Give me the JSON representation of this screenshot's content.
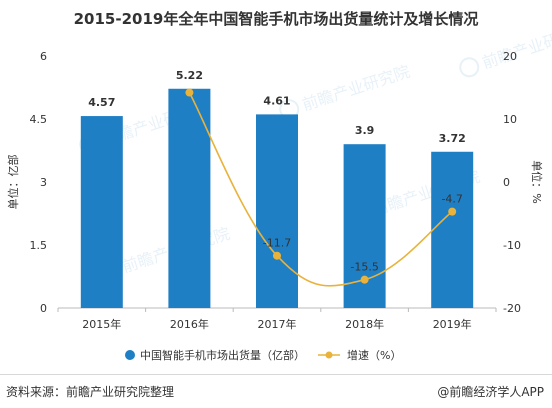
{
  "title": "2015-2019年全年中国智能手机市场出货量统计及增长情况",
  "source": "资料来源：前瞻产业研究院整理",
  "brand": "@前瞻经济学人APP",
  "watermark": {
    "main": "前瞻产业研究院",
    "sub": "前瞻产业研究院"
  },
  "colors": {
    "bar": "#1f7fc5",
    "line": "#e9b33b",
    "axis": "#bbbbbb"
  },
  "chart_data": {
    "type": "bar",
    "categories": [
      "2015年",
      "2016年",
      "2017年",
      "2018年",
      "2019年"
    ],
    "series": [
      {
        "name": "中国智能手机市场出货量（亿部）",
        "type": "bar",
        "axis": "left",
        "values": [
          4.57,
          5.22,
          4.61,
          3.9,
          3.72
        ],
        "labels": [
          "4.57",
          "5.22",
          "4.61",
          "3.9",
          "3.72"
        ]
      },
      {
        "name": "增速（%）",
        "type": "line",
        "axis": "right",
        "values": [
          null,
          14.2,
          -11.7,
          -15.5,
          -4.7
        ],
        "labels": [
          "",
          "",
          "-11.7",
          "-15.5",
          "-4.7"
        ]
      }
    ],
    "ylabel_left": "单位：亿部",
    "ylabel_right": "单位：%",
    "ylim_left": [
      0,
      6
    ],
    "yticks_left": [
      "0",
      "1.5",
      "3",
      "4.5",
      "6"
    ],
    "ylim_right": [
      -20,
      20
    ],
    "yticks_right": [
      "-20",
      "-10",
      "0",
      "10",
      "20"
    ],
    "grid": false,
    "legend_position": "bottom"
  }
}
